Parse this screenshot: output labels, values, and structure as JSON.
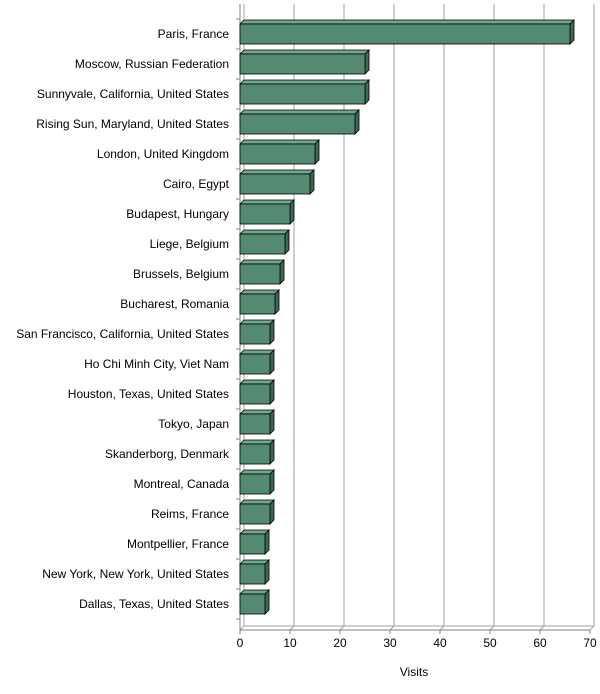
{
  "chart_data": {
    "type": "bar",
    "orientation": "horizontal",
    "style": "3d",
    "categories": [
      "Paris, France",
      "Moscow, Russian Federation",
      "Sunnyvale, California, United States",
      "Rising Sun, Maryland, United States",
      "London, United Kingdom",
      "Cairo, Egypt",
      "Budapest, Hungary",
      "Liege, Belgium",
      "Brussels, Belgium",
      "Bucharest, Romania",
      "San Francisco, California, United States",
      "Ho Chi Minh City, Viet Nam",
      "Houston, Texas, United States",
      "Tokyo, Japan",
      "Skanderborg, Denmark",
      "Montreal, Canada",
      "Reims, France",
      "Montpellier, France",
      "New York, New York, United States",
      "Dallas, Texas, United States"
    ],
    "values": [
      66,
      25,
      25,
      23,
      15,
      14,
      10,
      9,
      8,
      7,
      6,
      6,
      6,
      6,
      6,
      6,
      6,
      5,
      5,
      5
    ],
    "xlabel": "Visits",
    "ylabel": "",
    "xlim": [
      0,
      70
    ],
    "xticks": [
      0,
      10,
      20,
      30,
      40,
      50,
      60,
      70
    ],
    "grid": true,
    "legend": "none",
    "colors": {
      "bar_front": "#548a72",
      "bar_top": "#6fa88d",
      "bar_side": "#3a6b55",
      "bar_stroke": "#000000",
      "grid": "#a0a0a0",
      "axis": "#808080"
    }
  }
}
